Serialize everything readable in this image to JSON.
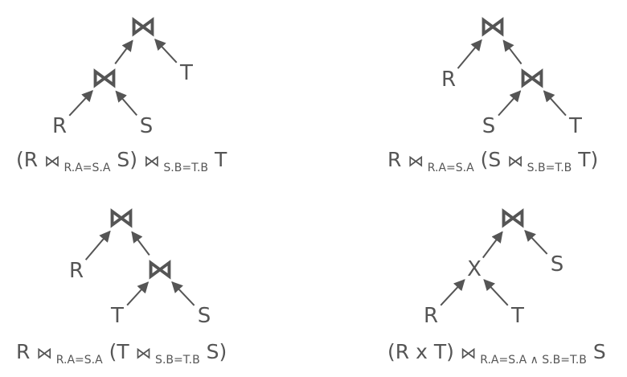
{
  "trees": [
    {
      "id": "plan-1",
      "nodes": [
        {
          "id": "j1",
          "label": "⋈",
          "kind": "join"
        },
        {
          "id": "j2",
          "label": "⋈",
          "kind": "join"
        },
        {
          "id": "t",
          "label": "T",
          "kind": "rel"
        },
        {
          "id": "r",
          "label": "R",
          "kind": "rel"
        },
        {
          "id": "s",
          "label": "S",
          "kind": "rel"
        }
      ],
      "edges": [
        [
          "j2",
          "j1"
        ],
        [
          "t",
          "j1"
        ],
        [
          "r",
          "j2"
        ],
        [
          "s",
          "j2"
        ]
      ],
      "expression": [
        {
          "text": "(R ",
          "role": "main"
        },
        {
          "text": "⋈",
          "role": "op"
        },
        {
          "text": " R.A=S.A",
          "role": "sub"
        },
        {
          "text": " S) ",
          "role": "main"
        },
        {
          "text": "⋈",
          "role": "op"
        },
        {
          "text": " S.B=T.B",
          "role": "sub"
        },
        {
          "text": " T",
          "role": "main"
        }
      ]
    },
    {
      "id": "plan-2",
      "nodes": [
        {
          "id": "j1",
          "label": "⋈",
          "kind": "join"
        },
        {
          "id": "r",
          "label": "R",
          "kind": "rel"
        },
        {
          "id": "j2",
          "label": "⋈",
          "kind": "join"
        },
        {
          "id": "s",
          "label": "S",
          "kind": "rel"
        },
        {
          "id": "t",
          "label": "T",
          "kind": "rel"
        }
      ],
      "edges": [
        [
          "r",
          "j1"
        ],
        [
          "j2",
          "j1"
        ],
        [
          "s",
          "j2"
        ],
        [
          "t",
          "j2"
        ]
      ],
      "expression": [
        {
          "text": "R ",
          "role": "main"
        },
        {
          "text": "⋈",
          "role": "op"
        },
        {
          "text": " R.A=S.A",
          "role": "sub"
        },
        {
          "text": " (S ",
          "role": "main"
        },
        {
          "text": "⋈",
          "role": "op"
        },
        {
          "text": " S.B=T.B",
          "role": "sub"
        },
        {
          "text": " T)",
          "role": "main"
        }
      ]
    },
    {
      "id": "plan-3",
      "nodes": [
        {
          "id": "j1",
          "label": "⋈",
          "kind": "join"
        },
        {
          "id": "r",
          "label": "R",
          "kind": "rel"
        },
        {
          "id": "j2",
          "label": "⋈",
          "kind": "join"
        },
        {
          "id": "t",
          "label": "T",
          "kind": "rel"
        },
        {
          "id": "s",
          "label": "S",
          "kind": "rel"
        }
      ],
      "edges": [
        [
          "r",
          "j1"
        ],
        [
          "j2",
          "j1"
        ],
        [
          "t",
          "j2"
        ],
        [
          "s",
          "j2"
        ]
      ],
      "expression": [
        {
          "text": "R ",
          "role": "main"
        },
        {
          "text": "⋈",
          "role": "op"
        },
        {
          "text": " R.A=S.A",
          "role": "sub"
        },
        {
          "text": " (T ",
          "role": "main"
        },
        {
          "text": "⋈",
          "role": "op"
        },
        {
          "text": " S.B=T.B",
          "role": "sub"
        },
        {
          "text": " S)",
          "role": "main"
        }
      ]
    },
    {
      "id": "plan-4",
      "nodes": [
        {
          "id": "j1",
          "label": "⋈",
          "kind": "join"
        },
        {
          "id": "x",
          "label": "X",
          "kind": "rel"
        },
        {
          "id": "s",
          "label": "S",
          "kind": "rel"
        },
        {
          "id": "r",
          "label": "R",
          "kind": "rel"
        },
        {
          "id": "t",
          "label": "T",
          "kind": "rel"
        }
      ],
      "edges": [
        [
          "x",
          "j1"
        ],
        [
          "s",
          "j1"
        ],
        [
          "r",
          "x"
        ],
        [
          "t",
          "x"
        ]
      ],
      "expression": [
        {
          "text": "(R x T) ",
          "role": "main"
        },
        {
          "text": "⋈",
          "role": "op"
        },
        {
          "text": " R.A=S.A ∧ S.B=T.B",
          "role": "sub"
        },
        {
          "text": " S",
          "role": "main"
        }
      ]
    }
  ],
  "colors": {
    "ink": "#555555",
    "background": "#ffffff"
  }
}
